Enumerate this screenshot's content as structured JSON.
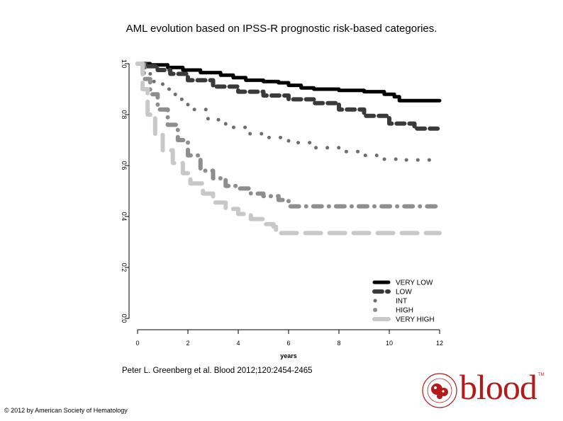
{
  "slide": {
    "title": "AML evolution based on IPSS-R prognostic risk-based categories.",
    "citation": "Peter L. Greenberg et al. Blood 2012;120:2454-2465",
    "copyright": "© 2012 by American Society of Hematology",
    "logo_text": "blood",
    "logo_tm": "TM"
  },
  "colors": {
    "logo": "#b31b1b"
  },
  "chart_data": {
    "type": "line",
    "title": "AML evolution based on IPSS-R prognostic risk-based categories.",
    "xlabel": "years",
    "ylabel": "",
    "xlim": [
      0,
      12
    ],
    "ylim": [
      0,
      1
    ],
    "xticks": [
      "0",
      "2",
      "4",
      "6",
      "8",
      "10",
      "12"
    ],
    "yticks": [
      "0.0",
      "0.2",
      "0.4",
      "0.6",
      "0.8",
      "1.0"
    ],
    "grid": false,
    "legend_position": "bottom-right",
    "series": [
      {
        "name": "VERY LOW",
        "color": "#000000",
        "style": "solid",
        "points": [
          [
            0,
            1.0
          ],
          [
            0.5,
            0.995
          ],
          [
            1.2,
            0.985
          ],
          [
            1.8,
            0.975
          ],
          [
            2.5,
            0.965
          ],
          [
            3.3,
            0.955
          ],
          [
            3.8,
            0.945
          ],
          [
            4.3,
            0.935
          ],
          [
            5,
            0.93
          ],
          [
            5.6,
            0.925
          ],
          [
            6,
            0.915
          ],
          [
            6.5,
            0.905
          ],
          [
            7,
            0.9
          ],
          [
            8,
            0.895
          ],
          [
            9,
            0.89
          ],
          [
            9.5,
            0.89
          ],
          [
            9.8,
            0.88
          ],
          [
            10.2,
            0.87
          ],
          [
            10.4,
            0.855
          ],
          [
            11,
            0.855
          ],
          [
            12,
            0.855
          ]
        ]
      },
      {
        "name": "LOW",
        "color": "#3a3a3a",
        "style": "dash",
        "points": [
          [
            0,
            1.0
          ],
          [
            0.4,
            0.99
          ],
          [
            0.8,
            0.975
          ],
          [
            1.3,
            0.96
          ],
          [
            2,
            0.935
          ],
          [
            3,
            0.91
          ],
          [
            4,
            0.89
          ],
          [
            5,
            0.875
          ],
          [
            6,
            0.86
          ],
          [
            7,
            0.845
          ],
          [
            8,
            0.82
          ],
          [
            9,
            0.795
          ],
          [
            10,
            0.765
          ],
          [
            11,
            0.745
          ],
          [
            12,
            0.74
          ]
        ]
      },
      {
        "name": "INT",
        "color": "#6e6e6e",
        "style": "dot",
        "points": [
          [
            0,
            1.0
          ],
          [
            0.3,
            0.96
          ],
          [
            0.6,
            0.93
          ],
          [
            1,
            0.9
          ],
          [
            1.5,
            0.86
          ],
          [
            2,
            0.82
          ],
          [
            2.8,
            0.78
          ],
          [
            3.5,
            0.75
          ],
          [
            4.3,
            0.725
          ],
          [
            5,
            0.71
          ],
          [
            6,
            0.69
          ],
          [
            7,
            0.67
          ],
          [
            8,
            0.655
          ],
          [
            9,
            0.64
          ],
          [
            9.5,
            0.625
          ],
          [
            10.5,
            0.622
          ],
          [
            12,
            0.622
          ]
        ]
      },
      {
        "name": "HIGH",
        "color": "#8e8e8e",
        "style": "dashdot",
        "points": [
          [
            0,
            1.0
          ],
          [
            0.25,
            0.94
          ],
          [
            0.5,
            0.88
          ],
          [
            0.8,
            0.82
          ],
          [
            1.2,
            0.76
          ],
          [
            1.6,
            0.7
          ],
          [
            2,
            0.64
          ],
          [
            2.5,
            0.58
          ],
          [
            3,
            0.55
          ],
          [
            3.5,
            0.52
          ],
          [
            4,
            0.51
          ],
          [
            4.5,
            0.49
          ],
          [
            5,
            0.48
          ],
          [
            5.6,
            0.465
          ],
          [
            6,
            0.44
          ],
          [
            8,
            0.44
          ],
          [
            12,
            0.44
          ]
        ]
      },
      {
        "name": "VERY HIGH",
        "color": "#c8c8c8",
        "style": "longdash",
        "points": [
          [
            0,
            1.0
          ],
          [
            0.2,
            0.9
          ],
          [
            0.4,
            0.8
          ],
          [
            0.7,
            0.72
          ],
          [
            1,
            0.66
          ],
          [
            1.4,
            0.61
          ],
          [
            1.8,
            0.57
          ],
          [
            2.1,
            0.53
          ],
          [
            2.6,
            0.49
          ],
          [
            3,
            0.455
          ],
          [
            3.5,
            0.43
          ],
          [
            4,
            0.41
          ],
          [
            4.5,
            0.39
          ],
          [
            5,
            0.37
          ],
          [
            5.4,
            0.36
          ],
          [
            5.5,
            0.335
          ],
          [
            8,
            0.335
          ],
          [
            12,
            0.335
          ]
        ]
      }
    ]
  }
}
